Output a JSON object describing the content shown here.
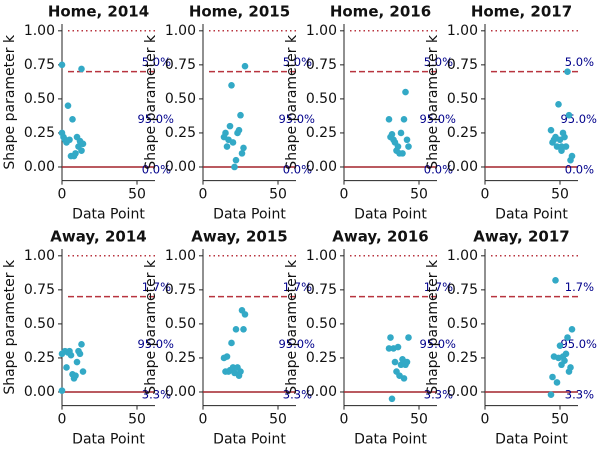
{
  "chart_data": [
    {
      "type": "scatter",
      "title": "Home, 2014",
      "xlabel": "Data Point",
      "ylabel": "Shape parameter k",
      "color": "#33a9c6",
      "x": [
        0,
        13,
        0,
        1,
        2,
        3,
        4,
        5,
        6,
        7,
        8,
        9,
        10,
        11,
        12,
        13,
        14
      ],
      "y": [
        0.75,
        0.72,
        0.25,
        0.22,
        0.2,
        0.18,
        0.45,
        0.2,
        0.08,
        0.35,
        0.08,
        0.1,
        0.22,
        0.15,
        0.19,
        0.12,
        0.17
      ],
      "xlim": [
        0,
        62
      ],
      "ylim": [
        -0.1,
        1.05
      ],
      "xticks": [
        0,
        50
      ],
      "yticks": [
        {
          "value": 0,
          "label": "0.00"
        },
        {
          "value": 0.25,
          "label": "0.25"
        },
        {
          "value": 0.5,
          "label": "0.50"
        },
        {
          "value": 0.75,
          "label": "0.75"
        },
        {
          "value": 1,
          "label": "1.00"
        }
      ],
      "hlines": [
        {
          "value": 1,
          "style": "dotted",
          "color": "#b8343f"
        },
        {
          "value": 0.7,
          "style": "dashed",
          "color": "#b8343f",
          "label": "5.0%"
        },
        {
          "value": 0,
          "style": "solid",
          "color": "#a3232c",
          "label": "0.0%"
        }
      ],
      "region_label": "95.0%"
    },
    {
      "type": "scatter",
      "title": "Home, 2015",
      "xlabel": "Data Point",
      "ylabel": "Shape parameter k",
      "color": "#33a9c6",
      "x": [
        14,
        15,
        16,
        17,
        18,
        19,
        20,
        21,
        22,
        23,
        24,
        25,
        26,
        27,
        28
      ],
      "y": [
        0.22,
        0.25,
        0.15,
        0.2,
        0.3,
        0.6,
        0.18,
        0.0,
        0.05,
        0.25,
        0.27,
        0.38,
        0.1,
        0.14,
        0.74
      ],
      "xlim": [
        0,
        62
      ],
      "ylim": [
        -0.1,
        1.05
      ],
      "xticks": [
        0,
        50
      ],
      "yticks": [
        {
          "value": 0,
          "label": "0.00"
        },
        {
          "value": 0.25,
          "label": "0.25"
        },
        {
          "value": 0.5,
          "label": "0.50"
        },
        {
          "value": 0.75,
          "label": "0.75"
        },
        {
          "value": 1,
          "label": "1.00"
        }
      ],
      "hlines": [
        {
          "value": 1,
          "style": "dotted",
          "color": "#b8343f"
        },
        {
          "value": 0.7,
          "style": "dashed",
          "color": "#b8343f",
          "label": "5.0%"
        },
        {
          "value": 0,
          "style": "solid",
          "color": "#a3232c",
          "label": "0.0%"
        }
      ],
      "region_label": "95.0%"
    },
    {
      "type": "scatter",
      "title": "Home, 2016",
      "xlabel": "Data Point",
      "ylabel": "Shape parameter k",
      "color": "#33a9c6",
      "x": [
        30,
        31,
        32,
        33,
        34,
        35,
        36,
        37,
        38,
        39,
        40,
        41,
        42,
        43
      ],
      "y": [
        0.35,
        0.22,
        0.24,
        0.2,
        0.18,
        0.12,
        0.15,
        0.1,
        0.25,
        0.1,
        0.35,
        0.55,
        0.2,
        0.15
      ],
      "xlim": [
        0,
        62
      ],
      "ylim": [
        -0.1,
        1.05
      ],
      "xticks": [
        0,
        50
      ],
      "yticks": [
        {
          "value": 0,
          "label": "0.00"
        },
        {
          "value": 0.25,
          "label": "0.25"
        },
        {
          "value": 0.5,
          "label": "0.50"
        },
        {
          "value": 0.75,
          "label": "0.75"
        },
        {
          "value": 1,
          "label": "1.00"
        }
      ],
      "hlines": [
        {
          "value": 1,
          "style": "dotted",
          "color": "#b8343f"
        },
        {
          "value": 0.7,
          "style": "dashed",
          "color": "#b8343f",
          "label": "5.0%"
        },
        {
          "value": 0,
          "style": "solid",
          "color": "#a3232c",
          "label": "0.0%"
        }
      ],
      "region_label": "95.0%"
    },
    {
      "type": "scatter",
      "title": "Home, 2017",
      "xlabel": "Data Point",
      "ylabel": "Shape parameter k",
      "color": "#33a9c6",
      "x": [
        44,
        45,
        46,
        47,
        48,
        49,
        50,
        51,
        52,
        53,
        54,
        55,
        56,
        57,
        58,
        51
      ],
      "y": [
        0.27,
        0.18,
        0.2,
        0.22,
        0.15,
        0.46,
        0.2,
        0.15,
        0.25,
        0.22,
        0.15,
        0.7,
        0.38,
        0.05,
        0.08,
        0.12
      ],
      "xlim": [
        0,
        62
      ],
      "ylim": [
        -0.1,
        1.05
      ],
      "xticks": [
        0,
        50
      ],
      "yticks": [
        {
          "value": 0,
          "label": "0.00"
        },
        {
          "value": 0.25,
          "label": "0.25"
        },
        {
          "value": 0.5,
          "label": "0.50"
        },
        {
          "value": 0.75,
          "label": "0.75"
        },
        {
          "value": 1,
          "label": "1.00"
        }
      ],
      "hlines": [
        {
          "value": 1,
          "style": "dotted",
          "color": "#b8343f"
        },
        {
          "value": 0.7,
          "style": "dashed",
          "color": "#b8343f",
          "label": "5.0%"
        },
        {
          "value": 0,
          "style": "solid",
          "color": "#a3232c",
          "label": "0.0%"
        }
      ],
      "region_label": "95.0%"
    },
    {
      "type": "scatter",
      "title": "Away, 2014",
      "xlabel": "Data Point",
      "ylabel": "Shape parameter k",
      "color": "#33a9c6",
      "x": [
        0,
        0,
        2,
        3,
        4,
        5,
        6,
        7,
        8,
        9,
        10,
        11,
        12,
        13,
        14
      ],
      "y": [
        0.28,
        0.01,
        0.3,
        0.18,
        0.29,
        0.3,
        0.27,
        0.13,
        0.1,
        0.12,
        0.22,
        0.3,
        0.28,
        0.35,
        0.15
      ],
      "xlim": [
        0,
        62
      ],
      "ylim": [
        -0.1,
        1.05
      ],
      "xticks": [
        0,
        50
      ],
      "yticks": [
        {
          "value": 0,
          "label": "0.00"
        },
        {
          "value": 0.25,
          "label": "0.25"
        },
        {
          "value": 0.5,
          "label": "0.50"
        },
        {
          "value": 0.75,
          "label": "0.75"
        },
        {
          "value": 1,
          "label": "1.00"
        }
      ],
      "hlines": [
        {
          "value": 1,
          "style": "dotted",
          "color": "#b8343f"
        },
        {
          "value": 0.7,
          "style": "dashed",
          "color": "#b8343f",
          "label": "1.7%"
        },
        {
          "value": 0,
          "style": "solid",
          "color": "#a3232c",
          "label": "3.3%"
        }
      ],
      "region_label": "95.0%"
    },
    {
      "type": "scatter",
      "title": "Away, 2015",
      "xlabel": "Data Point",
      "ylabel": "Shape parameter k",
      "color": "#33a9c6",
      "x": [
        14,
        15,
        16,
        17,
        18,
        19,
        20,
        21,
        22,
        23,
        24,
        25,
        26,
        27,
        28
      ],
      "y": [
        0.25,
        0.15,
        0.26,
        0.15,
        0.16,
        0.36,
        0.18,
        0.14,
        0.46,
        0.18,
        0.12,
        0.15,
        0.6,
        0.46,
        0.57
      ],
      "xlim": [
        0,
        62
      ],
      "ylim": [
        -0.1,
        1.05
      ],
      "xticks": [
        0,
        50
      ],
      "yticks": [
        {
          "value": 0,
          "label": "0.00"
        },
        {
          "value": 0.25,
          "label": "0.25"
        },
        {
          "value": 0.5,
          "label": "0.50"
        },
        {
          "value": 0.75,
          "label": "0.75"
        },
        {
          "value": 1,
          "label": "1.00"
        }
      ],
      "hlines": [
        {
          "value": 1,
          "style": "dotted",
          "color": "#b8343f"
        },
        {
          "value": 0.7,
          "style": "dashed",
          "color": "#b8343f",
          "label": "1.7%"
        },
        {
          "value": 0,
          "style": "solid",
          "color": "#a3232c",
          "label": "3.3%"
        }
      ],
      "region_label": "95.0%"
    },
    {
      "type": "scatter",
      "title": "Away, 2016",
      "xlabel": "Data Point",
      "ylabel": "Shape parameter k",
      "color": "#33a9c6",
      "x": [
        30,
        31,
        32,
        33,
        34,
        35,
        36,
        37,
        38,
        39,
        40,
        41,
        42,
        43
      ],
      "y": [
        0.32,
        0.4,
        -0.05,
        0.32,
        0.22,
        0.15,
        0.33,
        0.12,
        0.2,
        0.24,
        0.1,
        0.2,
        0.22,
        0.4
      ],
      "xlim": [
        0,
        62
      ],
      "ylim": [
        -0.1,
        1.05
      ],
      "xticks": [
        0,
        50
      ],
      "yticks": [
        {
          "value": 0,
          "label": "0.00"
        },
        {
          "value": 0.25,
          "label": "0.25"
        },
        {
          "value": 0.5,
          "label": "0.50"
        },
        {
          "value": 0.75,
          "label": "0.75"
        },
        {
          "value": 1,
          "label": "1.00"
        }
      ],
      "hlines": [
        {
          "value": 1,
          "style": "dotted",
          "color": "#b8343f"
        },
        {
          "value": 0.7,
          "style": "dashed",
          "color": "#b8343f",
          "label": "1.7%"
        },
        {
          "value": 0,
          "style": "solid",
          "color": "#a3232c",
          "label": "3.3%"
        }
      ],
      "region_label": "95.0%"
    },
    {
      "type": "scatter",
      "title": "Away, 2017",
      "xlabel": "Data Point",
      "ylabel": "Shape parameter k",
      "color": "#33a9c6",
      "x": [
        44,
        45,
        46,
        47,
        48,
        49,
        50,
        51,
        52,
        53,
        54,
        55,
        56,
        57,
        58
      ],
      "y": [
        -0.02,
        0.11,
        0.26,
        0.82,
        0.07,
        0.25,
        0.34,
        0.2,
        0.26,
        0.23,
        0.28,
        0.4,
        0.15,
        0.18,
        0.46
      ],
      "xlim": [
        0,
        62
      ],
      "ylim": [
        -0.1,
        1.05
      ],
      "xticks": [
        0,
        50
      ],
      "yticks": [
        {
          "value": 0,
          "label": "0.00"
        },
        {
          "value": 0.25,
          "label": "0.25"
        },
        {
          "value": 0.5,
          "label": "0.50"
        },
        {
          "value": 0.75,
          "label": "0.75"
        },
        {
          "value": 1,
          "label": "1.00"
        }
      ],
      "hlines": [
        {
          "value": 1,
          "style": "dotted",
          "color": "#b8343f"
        },
        {
          "value": 0.7,
          "style": "dashed",
          "color": "#b8343f",
          "label": "1.7%"
        },
        {
          "value": 0,
          "style": "solid",
          "color": "#a3232c",
          "label": "3.3%"
        }
      ],
      "region_label": "95.0%"
    }
  ]
}
